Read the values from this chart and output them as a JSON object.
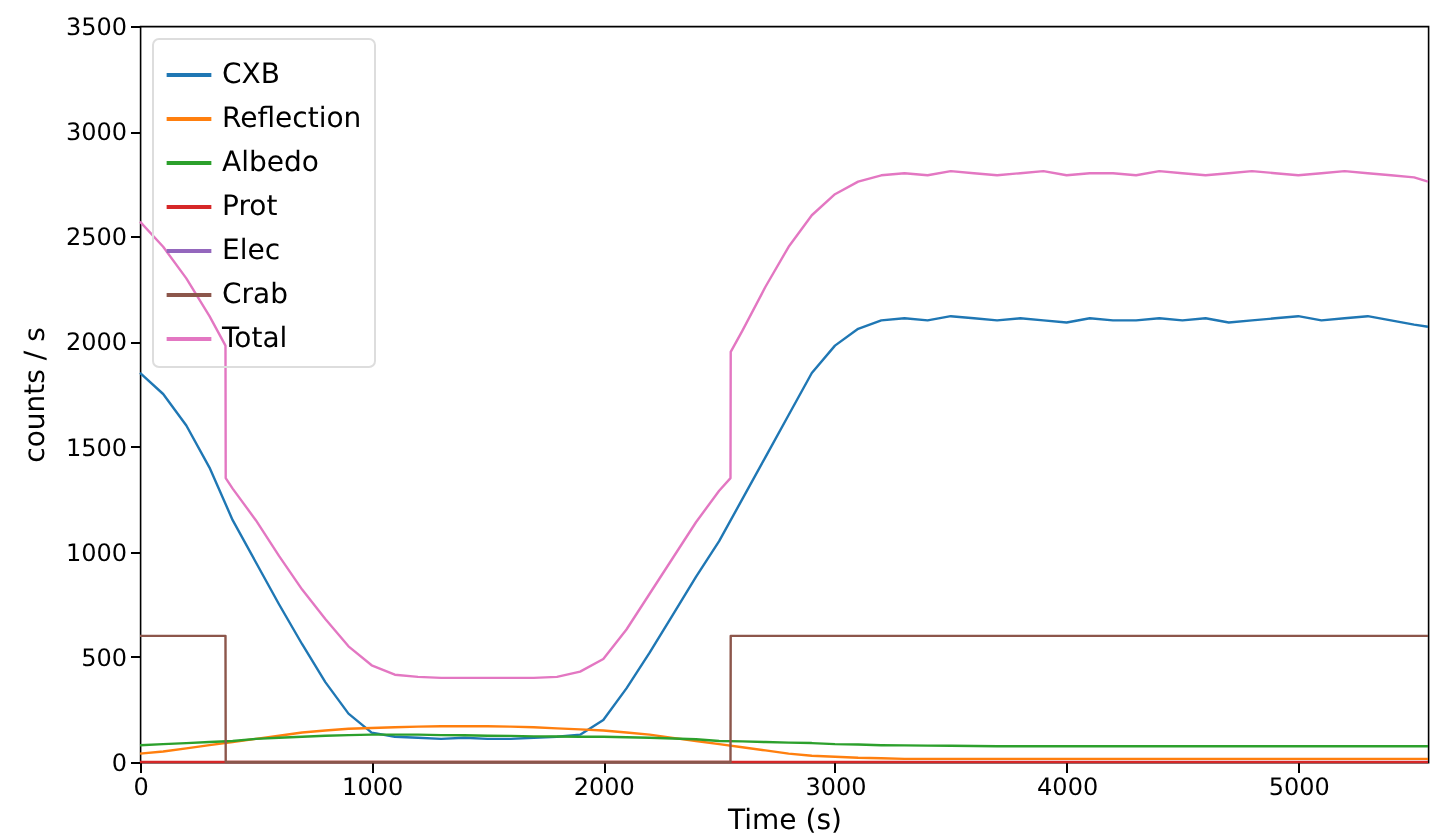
{
  "chart_data": {
    "type": "line",
    "xlabel": "Time (s)",
    "ylabel": "counts / s",
    "x": [
      0,
      100,
      200,
      300,
      400,
      500,
      600,
      700,
      800,
      900,
      1000,
      1100,
      1200,
      1300,
      1400,
      1500,
      1600,
      1700,
      1800,
      1900,
      2000,
      2100,
      2200,
      2300,
      2400,
      2500,
      2600,
      2700,
      2800,
      2900,
      3000,
      3100,
      3200,
      3300,
      3400,
      3500,
      3600,
      3700,
      3800,
      3900,
      4000,
      4100,
      4200,
      4300,
      4400,
      4500,
      4600,
      4700,
      4800,
      4900,
      5000,
      5100,
      5200,
      5300,
      5400,
      5500,
      5560
    ],
    "series": [
      {
        "name": "CXB",
        "color": "#1f77b4",
        "values": [
          1850,
          1750,
          1600,
          1400,
          1150,
          950,
          750,
          560,
          380,
          230,
          140,
          120,
          115,
          110,
          115,
          110,
          110,
          115,
          120,
          130,
          200,
          350,
          520,
          700,
          880,
          1050,
          1250,
          1450,
          1650,
          1850,
          1980,
          2060,
          2100,
          2110,
          2100,
          2120,
          2110,
          2100,
          2110,
          2100,
          2090,
          2110,
          2100,
          2100,
          2110,
          2100,
          2110,
          2090,
          2100,
          2110,
          2120,
          2100,
          2110,
          2120,
          2100,
          2080,
          2070
        ]
      },
      {
        "name": "Reflection",
        "color": "#ff7f0e",
        "values": [
          40,
          50,
          65,
          80,
          95,
          110,
          125,
          140,
          150,
          158,
          162,
          165,
          168,
          170,
          170,
          170,
          168,
          165,
          160,
          155,
          150,
          140,
          130,
          115,
          100,
          85,
          70,
          55,
          40,
          30,
          25,
          20,
          18,
          15,
          15,
          15,
          15,
          15,
          15,
          15,
          15,
          15,
          15,
          15,
          15,
          15,
          15,
          15,
          15,
          15,
          15,
          15,
          15,
          15,
          15,
          15,
          15
        ]
      },
      {
        "name": "Albedo",
        "color": "#2ca02c",
        "values": [
          80,
          85,
          90,
          95,
          100,
          110,
          115,
          120,
          125,
          128,
          130,
          130,
          130,
          128,
          127,
          125,
          124,
          122,
          121,
          120,
          120,
          118,
          115,
          112,
          108,
          100,
          98,
          95,
          92,
          90,
          85,
          83,
          80,
          79,
          78,
          77,
          76,
          75,
          75,
          75,
          75,
          75,
          75,
          75,
          75,
          75,
          75,
          75,
          75,
          75,
          75,
          75,
          75,
          75,
          75,
          75,
          75
        ]
      },
      {
        "name": "Prot",
        "color": "#d62728",
        "x": [
          0,
          5560
        ],
        "values": [
          0,
          0
        ]
      },
      {
        "name": "Elec",
        "color": "#9467bd",
        "values": [
          null,
          null,
          null,
          null,
          null,
          null,
          null,
          null,
          null,
          null,
          null,
          null,
          null,
          null,
          null,
          null,
          null,
          null,
          null,
          null,
          null,
          null,
          null,
          null,
          null,
          null,
          null,
          null,
          null,
          null,
          null,
          null,
          null,
          null,
          null,
          null,
          null,
          null,
          null,
          null,
          null,
          null,
          null,
          null,
          null,
          null,
          null,
          null,
          null,
          null,
          null,
          null,
          null,
          null,
          null,
          null,
          null
        ]
      },
      {
        "name": "Crab",
        "color": "#8c564b",
        "x": [
          0,
          369,
          370,
          2549,
          2550,
          5560
        ],
        "values": [
          600,
          600,
          0,
          0,
          600,
          600
        ]
      },
      {
        "name": "Total",
        "color": "#e377c2",
        "x": [
          0,
          100,
          200,
          300,
          369,
          370,
          400,
          500,
          600,
          700,
          800,
          900,
          1000,
          1100,
          1200,
          1300,
          1400,
          1500,
          1600,
          1700,
          1800,
          1900,
          2000,
          2100,
          2200,
          2300,
          2400,
          2500,
          2549,
          2550,
          2600,
          2700,
          2800,
          2900,
          3000,
          3100,
          3200,
          3300,
          3400,
          3500,
          3600,
          3700,
          3800,
          3900,
          4000,
          4100,
          4200,
          4300,
          4400,
          4500,
          4600,
          4700,
          4800,
          4900,
          5000,
          5100,
          5200,
          5300,
          5400,
          5500,
          5560
        ],
        "values": [
          2570,
          2450,
          2300,
          2120,
          1980,
          1350,
          1300,
          1150,
          980,
          820,
          680,
          550,
          460,
          415,
          405,
          400,
          400,
          400,
          400,
          400,
          405,
          430,
          490,
          630,
          800,
          970,
          1140,
          1290,
          1350,
          1950,
          2050,
          2260,
          2450,
          2600,
          2700,
          2760,
          2790,
          2800,
          2790,
          2810,
          2800,
          2790,
          2800,
          2810,
          2790,
          2800,
          2800,
          2790,
          2810,
          2800,
          2790,
          2800,
          2810,
          2800,
          2790,
          2800,
          2810,
          2800,
          2790,
          2780,
          2760
        ]
      }
    ],
    "xlim": [
      0,
      5560
    ],
    "xticks": [
      0,
      1000,
      2000,
      3000,
      4000,
      5000
    ],
    "ylim": [
      0,
      3500
    ],
    "yticks": [
      0,
      500,
      1000,
      1500,
      2000,
      2500,
      3000,
      3500
    ],
    "grid": false,
    "legend": "top left"
  }
}
